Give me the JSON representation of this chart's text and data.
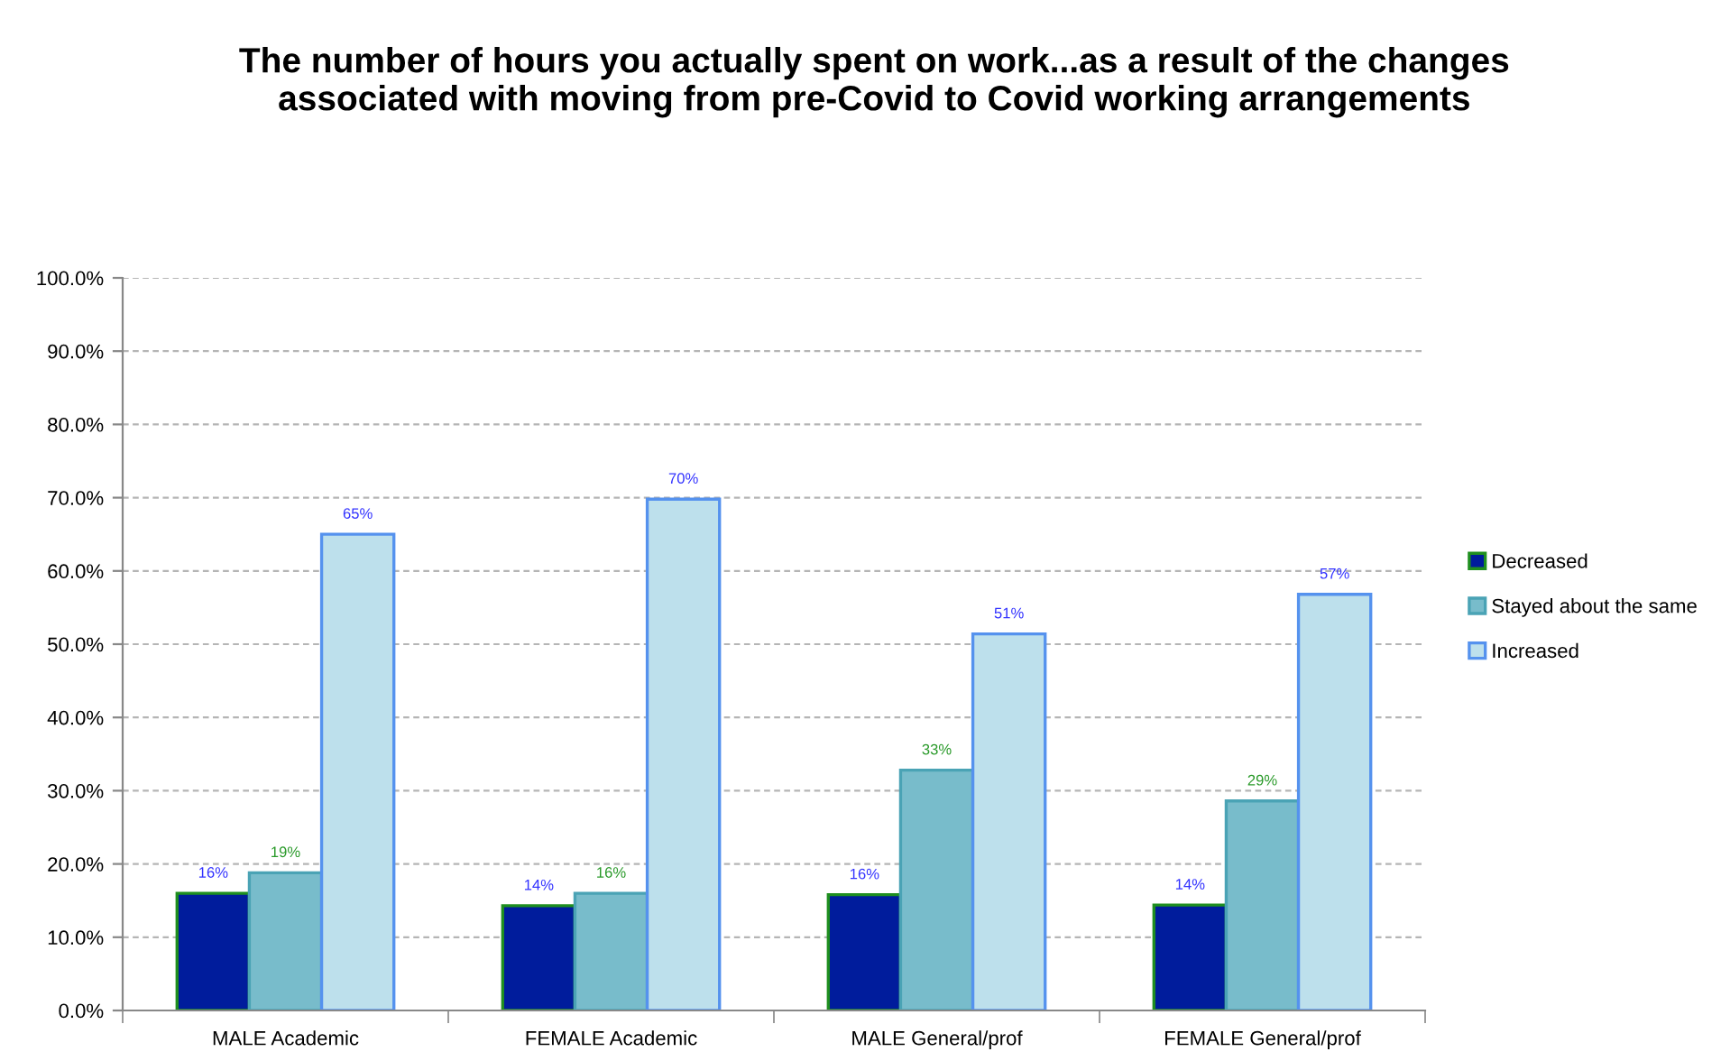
{
  "chart_data": {
    "type": "bar",
    "title": "The number of hours you actually spent on work...as a result of the changes associated with moving from pre-Covid to Covid working arrangements",
    "categories": [
      "MALE Academic",
      "FEMALE Academic",
      "MALE General/prof",
      "FEMALE General/prof"
    ],
    "series": [
      {
        "name": "Decreased",
        "color": "#001c9c",
        "values": [
          16.0,
          14.3,
          15.8,
          14.4
        ],
        "value_labels": [
          "16%",
          "14%",
          "16%",
          "14%"
        ]
      },
      {
        "name": "Stayed about the same",
        "color": "#78bccb",
        "values": [
          18.8,
          16.0,
          32.8,
          28.6
        ],
        "value_labels": [
          "19%",
          "16%",
          "33%",
          "29%"
        ]
      },
      {
        "name": "Increased",
        "color": "#bde0ec",
        "values": [
          65.0,
          69.8,
          51.4,
          56.8
        ],
        "value_labels": [
          "65%",
          "70%",
          "51%",
          "57%"
        ]
      }
    ],
    "ylim": [
      0,
      100
    ],
    "yticks": [
      {
        "value": 0,
        "label": "0.0%"
      },
      {
        "value": 10,
        "label": "10.0%"
      },
      {
        "value": 20,
        "label": "20.0%"
      },
      {
        "value": 30,
        "label": "30.0%"
      },
      {
        "value": 40,
        "label": "40.0%"
      },
      {
        "value": 50,
        "label": "50.0%"
      },
      {
        "value": 60,
        "label": "60.0%"
      },
      {
        "value": 70,
        "label": "70.0%"
      },
      {
        "value": 80,
        "label": "80.0%"
      },
      {
        "value": 90,
        "label": "90.0%"
      },
      {
        "value": 100,
        "label": "100.0%"
      }
    ],
    "grid": "y",
    "legend": "right"
  }
}
